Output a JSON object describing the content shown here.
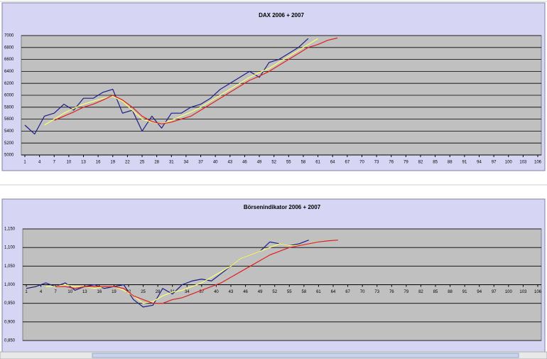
{
  "chart_data": [
    {
      "type": "line",
      "title": "DAX 2006 + 2007",
      "x": [
        1,
        3,
        5,
        7,
        9,
        11,
        13,
        15,
        17,
        19,
        21,
        23,
        25,
        27,
        29,
        31,
        33,
        35,
        37,
        39,
        41,
        43,
        45,
        47,
        49,
        51,
        53,
        55,
        57,
        59,
        61,
        63,
        65
      ],
      "xlim": [
        1,
        106
      ],
      "xticks": [
        1,
        4,
        7,
        10,
        13,
        16,
        19,
        22,
        25,
        28,
        31,
        34,
        37,
        40,
        43,
        46,
        49,
        52,
        55,
        58,
        61,
        64,
        67,
        70,
        73,
        76,
        79,
        82,
        85,
        88,
        91,
        94,
        97,
        100,
        103,
        106
      ],
      "ylim": [
        5000,
        7000
      ],
      "yticks": [
        5000,
        5200,
        5400,
        5600,
        5800,
        6000,
        6200,
        6400,
        6600,
        6800,
        7000
      ],
      "grid": true,
      "series": [
        {
          "color": "#1c1c8a",
          "values": [
            5500,
            5350,
            5650,
            5700,
            5850,
            5750,
            5950,
            5950,
            6050,
            6100,
            5700,
            5750,
            5400,
            5650,
            5450,
            5700,
            5700,
            5800,
            5850,
            5950,
            6100,
            6200,
            6300,
            6400,
            6300,
            6550,
            6600,
            6700,
            6800,
            6950,
            null,
            null,
            null
          ]
        },
        {
          "color": "#ffff70",
          "values": [
            null,
            null,
            5500,
            5600,
            5700,
            5780,
            5850,
            5900,
            5950,
            5980,
            5900,
            5750,
            5600,
            5550,
            5520,
            5580,
            5650,
            5720,
            5800,
            5900,
            6000,
            6100,
            6200,
            6300,
            6380,
            6450,
            6550,
            6650,
            6750,
            6850,
            6950,
            null,
            null
          ]
        },
        {
          "color": "#e0201c",
          "values": [
            null,
            null,
            null,
            5580,
            5650,
            5720,
            5800,
            5850,
            5920,
            6000,
            5920,
            5800,
            5650,
            5560,
            5520,
            5550,
            5600,
            5650,
            5750,
            5850,
            5950,
            6050,
            6150,
            6250,
            6320,
            6400,
            6500,
            6600,
            6700,
            6800,
            6850,
            6920,
            6960
          ]
        }
      ]
    },
    {
      "type": "line",
      "title": "Börsenindikator 2006 + 2007",
      "x": [
        1,
        3,
        5,
        7,
        9,
        11,
        13,
        15,
        17,
        19,
        21,
        23,
        25,
        27,
        29,
        31,
        33,
        35,
        37,
        39,
        41,
        43,
        45,
        47,
        49,
        51,
        53,
        55,
        57,
        59,
        61,
        63,
        65
      ],
      "xlim": [
        1,
        106
      ],
      "xticks": [
        1,
        4,
        7,
        10,
        13,
        16,
        19,
        22,
        25,
        28,
        31,
        34,
        37,
        40,
        43,
        46,
        49,
        52,
        55,
        58,
        61,
        64,
        67,
        70,
        73,
        76,
        79,
        82,
        85,
        88,
        91,
        94,
        97,
        100,
        103,
        106
      ],
      "ylim": [
        0.85,
        1.15
      ],
      "yticks": [
        {
          "value": 0.85,
          "label": "0,850"
        },
        {
          "value": 0.9,
          "label": "0,900"
        },
        {
          "value": 0.95,
          "label": "0,950"
        },
        {
          "value": 1.0,
          "label": "1,000"
        },
        {
          "value": 1.05,
          "label": "1,050"
        },
        {
          "value": 1.1,
          "label": "1,100"
        },
        {
          "value": 1.15,
          "label": "1,150"
        }
      ],
      "xaxis_at": 1.0,
      "grid": true,
      "series": [
        {
          "color": "#1c1c8a",
          "values": [
            0.99,
            0.995,
            1.005,
            0.995,
            1.005,
            0.985,
            0.995,
            1.0,
            0.99,
            0.995,
            1.0,
            0.96,
            0.94,
            0.945,
            0.99,
            0.975,
            1.0,
            1.01,
            1.015,
            1.01,
            1.03,
            1.05,
            1.07,
            1.08,
            1.09,
            1.115,
            1.11,
            1.105,
            1.11,
            1.12,
            null,
            null,
            null
          ]
        },
        {
          "color": "#ffff70",
          "values": [
            null,
            null,
            0.995,
            0.995,
            1.0,
            0.995,
            0.995,
            0.99,
            0.995,
            0.995,
            0.985,
            0.97,
            0.95,
            0.955,
            0.97,
            0.98,
            0.985,
            0.995,
            1.005,
            1.02,
            1.035,
            1.05,
            1.07,
            1.08,
            1.09,
            1.1,
            1.11,
            1.105,
            1.105,
            1.11,
            1.115,
            null,
            null
          ]
        },
        {
          "color": "#e0201c",
          "values": [
            null,
            null,
            null,
            0.995,
            0.995,
            0.99,
            0.995,
            0.995,
            0.995,
            0.995,
            0.99,
            0.97,
            0.96,
            0.95,
            0.95,
            0.96,
            0.965,
            0.975,
            0.985,
            0.995,
            1.005,
            1.02,
            1.035,
            1.05,
            1.065,
            1.08,
            1.09,
            1.1,
            1.105,
            1.11,
            1.115,
            1.118,
            1.12
          ]
        }
      ]
    }
  ]
}
